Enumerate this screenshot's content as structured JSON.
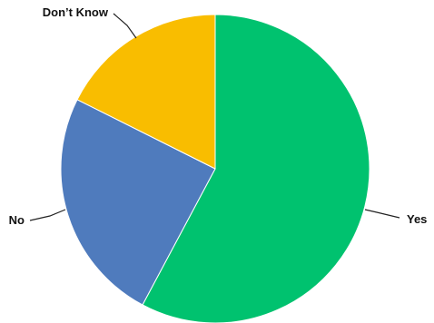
{
  "chart_data": {
    "type": "pie",
    "start_angle": "12 o'clock",
    "direction": "clockwise",
    "categories": [
      "Yes",
      "No",
      "Don’t Know"
    ],
    "values": [
      57.8,
      24.6,
      17.6
    ],
    "colors": [
      "#00c26f",
      "#4f7bbd",
      "#f9bd00"
    ],
    "labels": [
      "Yes",
      "No",
      "Don’t Know"
    ]
  }
}
